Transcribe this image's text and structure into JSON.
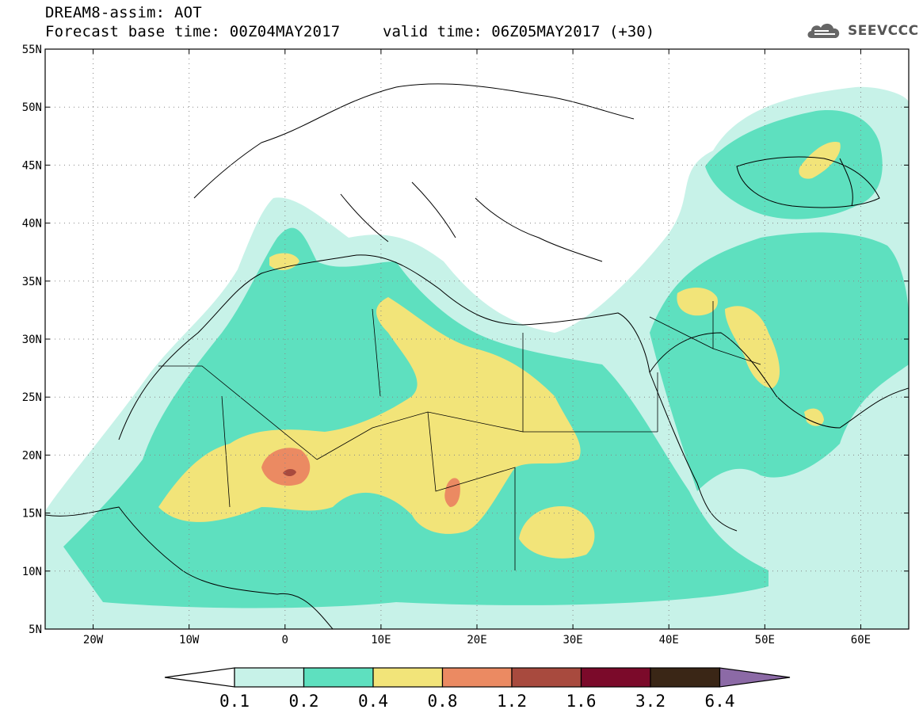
{
  "header": {
    "title_line1": "DREAM8-assim: AOT",
    "title_line2": "Forecast base time: 00Z04MAY2017",
    "valid_time": "valid time: 06Z05MAY2017 (+30)",
    "logo_text": "SEEVCCC"
  },
  "map": {
    "lon_range": [
      -25,
      65
    ],
    "lat_range": [
      5,
      55
    ],
    "lon_ticks": [
      {
        "value": -20,
        "label": "20W"
      },
      {
        "value": -10,
        "label": "10W"
      },
      {
        "value": 0,
        "label": "0"
      },
      {
        "value": 10,
        "label": "10E"
      },
      {
        "value": 20,
        "label": "20E"
      },
      {
        "value": 30,
        "label": "30E"
      },
      {
        "value": 40,
        "label": "40E"
      },
      {
        "value": 50,
        "label": "50E"
      },
      {
        "value": 60,
        "label": "60E"
      }
    ],
    "lat_ticks": [
      {
        "value": 55,
        "label": "55N"
      },
      {
        "value": 50,
        "label": "50N"
      },
      {
        "value": 45,
        "label": "45N"
      },
      {
        "value": 40,
        "label": "40N"
      },
      {
        "value": 35,
        "label": "35N"
      },
      {
        "value": 30,
        "label": "30N"
      },
      {
        "value": 25,
        "label": "25N"
      },
      {
        "value": 20,
        "label": "20N"
      },
      {
        "value": 15,
        "label": "15N"
      },
      {
        "value": 10,
        "label": "10N"
      },
      {
        "value": 5,
        "label": "5N"
      }
    ],
    "grid": "dotted"
  },
  "colorbar": {
    "boundaries": [
      "0.1",
      "0.2",
      "0.4",
      "0.8",
      "1.2",
      "1.6",
      "3.2",
      "6.4"
    ],
    "colors": [
      "#ffffff",
      "#c7f2e8",
      "#5ee0bf",
      "#f2e479",
      "#eb8a62",
      "#a84a3e",
      "#7b0a2a",
      "#3a2616",
      "#8c6aa6"
    ]
  }
}
